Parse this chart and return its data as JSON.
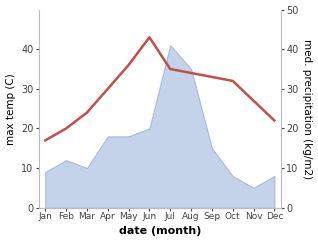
{
  "months": [
    "Jan",
    "Feb",
    "Mar",
    "Apr",
    "May",
    "Jun",
    "Jul",
    "Aug",
    "Sep",
    "Oct",
    "Nov",
    "Dec"
  ],
  "temperature": [
    17,
    20,
    24,
    30,
    36,
    43,
    35,
    34,
    33,
    32,
    27,
    22
  ],
  "precipitation": [
    9,
    12,
    10,
    18,
    18,
    20,
    41,
    35,
    15,
    8,
    5,
    8
  ],
  "temp_color": "#c0504d",
  "precip_fill_color": "#c5d3ea",
  "precip_edge_color": "#aab8d8",
  "ylim_left": [
    0,
    50
  ],
  "ylim_right": [
    0,
    50
  ],
  "yticks_left": [
    0,
    10,
    20,
    30,
    40
  ],
  "yticks_right": [
    0,
    10,
    20,
    30,
    40,
    50
  ],
  "xlabel": "date (month)",
  "ylabel_left": "max temp (C)",
  "ylabel_right": "med. precipitation (kg/m2)",
  "figsize": [
    3.18,
    2.42
  ],
  "dpi": 100
}
